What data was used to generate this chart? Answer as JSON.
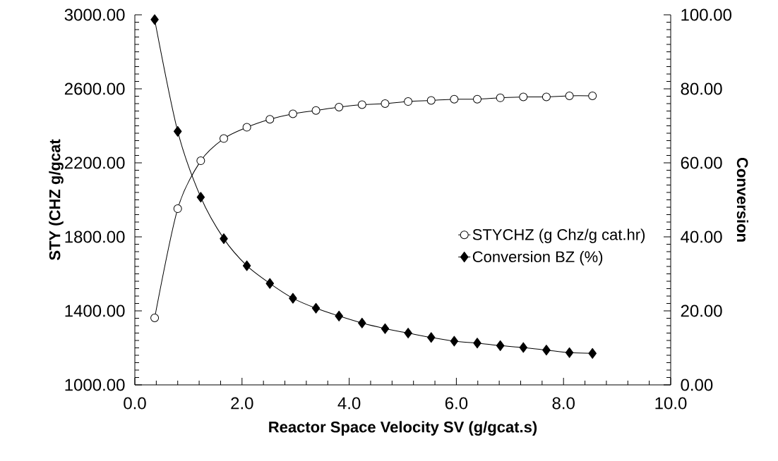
{
  "chart_data": {
    "type": "line",
    "xlabel": "Reactor Space Velocity SV (g/gcat.s)",
    "ylabel": "STY (CHZ g/gcat",
    "y2label": "Conversion",
    "x": [
      0.37,
      0.8,
      1.23,
      1.66,
      2.09,
      2.52,
      2.95,
      3.38,
      3.81,
      4.24,
      4.67,
      5.1,
      5.53,
      5.96,
      6.39,
      6.82,
      7.25,
      7.68,
      8.11,
      8.54
    ],
    "series": [
      {
        "name": "STYCHZ  (g Chz/g cat.hr)",
        "color": "#000000",
        "marker": "circle",
        "values": [
          1362,
          1952,
          2211,
          2331,
          2392,
          2435,
          2465,
          2483,
          2501,
          2514,
          2520,
          2531,
          2537,
          2544,
          2544,
          2551,
          2556,
          2556,
          2562,
          2562
        ]
      },
      {
        "name": "Conversion BZ (%)",
        "color": "#000000",
        "marker": "diamond",
        "axis": "y2",
        "values": [
          98.7,
          68.5,
          50.7,
          39.5,
          32.2,
          27.4,
          23.4,
          20.7,
          18.6,
          16.7,
          15.2,
          14.0,
          12.8,
          11.8,
          11.3,
          10.6,
          10.1,
          9.4,
          8.7,
          8.5
        ]
      }
    ],
    "xlim": [
      0,
      10
    ],
    "xticks": [
      {
        "value": 0,
        "label": "0.0"
      },
      {
        "value": 2,
        "label": "2.0"
      },
      {
        "value": 4,
        "label": "4.0"
      },
      {
        "value": 6,
        "label": "6.0"
      },
      {
        "value": 8,
        "label": "8.0"
      },
      {
        "value": 10,
        "label": "10.0"
      }
    ],
    "ylim": [
      1000,
      3000
    ],
    "yticks": [
      {
        "value": 1000,
        "label": "1000.00"
      },
      {
        "value": 1400,
        "label": "1400.00"
      },
      {
        "value": 1800,
        "label": "1800.00"
      },
      {
        "value": 2200,
        "label": "2200.00"
      },
      {
        "value": 2600,
        "label": "2600.00"
      },
      {
        "value": 3000,
        "label": "3000.00"
      }
    ],
    "y2lim": [
      0,
      100
    ],
    "y2ticks": [
      {
        "value": 0,
        "label": "0.00"
      },
      {
        "value": 20,
        "label": "20.00"
      },
      {
        "value": 40,
        "label": "40.00"
      },
      {
        "value": 60,
        "label": "60.00"
      },
      {
        "value": 80,
        "label": "80.00"
      },
      {
        "value": 100,
        "label": "100.00"
      }
    ],
    "legend": "right",
    "line_style": "solid"
  }
}
